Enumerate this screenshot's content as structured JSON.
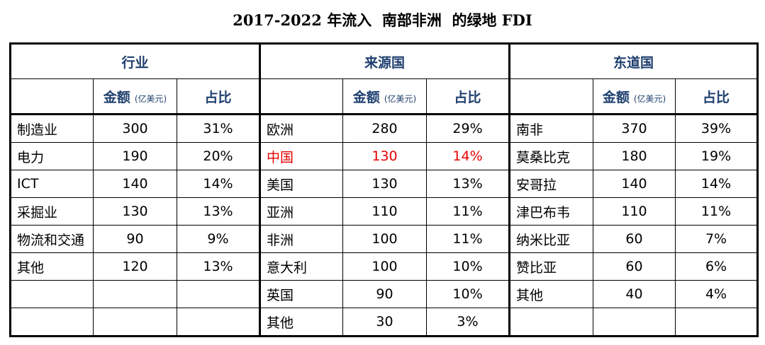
{
  "title": "2017-2022 年流入  南部非洲  的绿地 FDI",
  "colors": {
    "header": "#1f3f6e",
    "highlight": "#e60000"
  },
  "groups": [
    "行业",
    "来源国",
    "东道国"
  ],
  "subheaders": {
    "amount": "金额",
    "amount_unit": "(亿美元)",
    "share": "占比"
  },
  "industry": [
    {
      "name": "制造业",
      "amount": "300",
      "share": "31%"
    },
    {
      "name": "电力",
      "amount": "190",
      "share": "20%"
    },
    {
      "name": "ICT",
      "amount": "140",
      "share": "14%"
    },
    {
      "name": "采掘业",
      "amount": "130",
      "share": "13%"
    },
    {
      "name": "物流和交通",
      "amount": "90",
      "share": "9%"
    },
    {
      "name": "其他",
      "amount": "120",
      "share": "13%"
    },
    {
      "name": "",
      "amount": "",
      "share": ""
    },
    {
      "name": "",
      "amount": "",
      "share": ""
    }
  ],
  "source": [
    {
      "name": "欧洲",
      "amount": "280",
      "share": "29%"
    },
    {
      "name": "中国",
      "amount": "130",
      "share": "14%",
      "highlight": true
    },
    {
      "name": "美国",
      "amount": "130",
      "share": "13%"
    },
    {
      "name": "亚洲",
      "amount": "110",
      "share": "11%"
    },
    {
      "name": "非洲",
      "amount": "100",
      "share": "11%"
    },
    {
      "name": "意大利",
      "amount": "100",
      "share": "10%"
    },
    {
      "name": "英国",
      "amount": "90",
      "share": "10%"
    },
    {
      "name": "其他",
      "amount": "30",
      "share": "3%"
    }
  ],
  "host": [
    {
      "name": "南非",
      "amount": "370",
      "share": "39%"
    },
    {
      "name": "莫桑比克",
      "amount": "180",
      "share": "19%"
    },
    {
      "name": "安哥拉",
      "amount": "140",
      "share": "14%"
    },
    {
      "name": "津巴布韦",
      "amount": "110",
      "share": "11%"
    },
    {
      "name": "纳米比亚",
      "amount": "60",
      "share": "7%"
    },
    {
      "name": "赞比亚",
      "amount": "60",
      "share": "6%"
    },
    {
      "name": "其他",
      "amount": "40",
      "share": "4%"
    },
    {
      "name": "",
      "amount": "",
      "share": ""
    }
  ]
}
